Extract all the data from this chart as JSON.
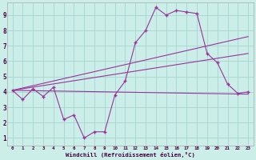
{
  "xlabel": "Windchill (Refroidissement éolien,°C)",
  "bg_color": "#cceee8",
  "grid_color": "#aad8d4",
  "line_color": "#993399",
  "xlim": [
    -0.5,
    23.5
  ],
  "ylim": [
    0.5,
    9.8
  ],
  "xtick_labels": [
    "0",
    "1",
    "2",
    "3",
    "4",
    "5",
    "6",
    "7",
    "8",
    "9",
    "10",
    "11",
    "12",
    "13",
    "14",
    "15",
    "16",
    "17",
    "18",
    "19",
    "20",
    "21",
    "22",
    "23"
  ],
  "ytick_labels": [
    "1",
    "2",
    "3",
    "4",
    "5",
    "6",
    "7",
    "8",
    "9"
  ],
  "line1_x": [
    0,
    1,
    2,
    3,
    4,
    5,
    6,
    7,
    8,
    9,
    10,
    11,
    12,
    13,
    14,
    15,
    16,
    17,
    18,
    19,
    20,
    21,
    22,
    23
  ],
  "line1_y": [
    4.1,
    3.5,
    4.2,
    3.7,
    4.3,
    2.2,
    2.5,
    1.0,
    1.4,
    1.4,
    3.8,
    4.7,
    7.2,
    8.0,
    9.5,
    9.0,
    9.3,
    9.2,
    9.1,
    6.5,
    5.9,
    4.5,
    3.9,
    4.0
  ],
  "line2_x": [
    0,
    23
  ],
  "line2_y": [
    4.1,
    7.6
  ],
  "line3_x": [
    0,
    23
  ],
  "line3_y": [
    4.1,
    6.5
  ],
  "line4_x": [
    0,
    23
  ],
  "line4_y": [
    4.1,
    3.85
  ]
}
